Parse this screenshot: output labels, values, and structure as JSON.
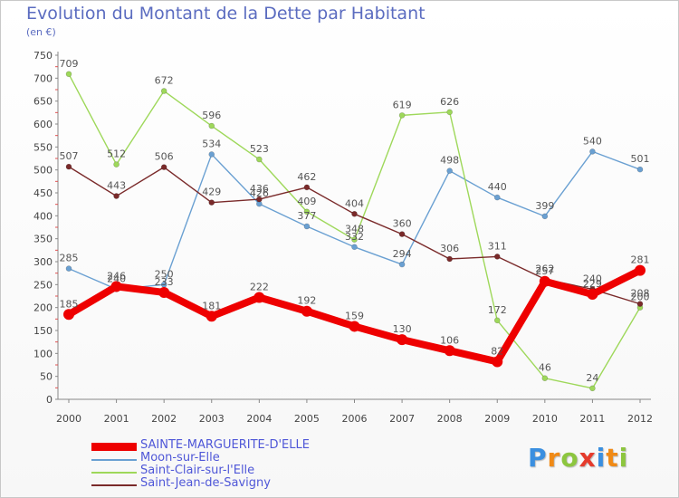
{
  "chart_data": {
    "type": "line",
    "title": "Evolution du Montant de la Dette par Habitant",
    "subtitle": "(en €)",
    "x": [
      "2000",
      "2001",
      "2002",
      "2003",
      "2004",
      "2005",
      "2006",
      "2007",
      "2008",
      "2009",
      "2010",
      "2011",
      "2012"
    ],
    "ylim": [
      0,
      750
    ],
    "y_ticks": [
      0,
      50,
      100,
      150,
      200,
      250,
      300,
      350,
      400,
      450,
      500,
      550,
      600,
      650,
      700,
      750
    ],
    "grid": false,
    "legend_position": "bottom-left",
    "series": [
      {
        "name": "SAINTE-MARGUERITE-D'ELLE",
        "color": "#ee0000",
        "width": 8,
        "values": [
          185,
          246,
          233,
          181,
          222,
          192,
          159,
          130,
          106,
          82,
          257,
          229,
          281
        ]
      },
      {
        "name": "Moon-sur-Elle",
        "color": "#6aa0d2",
        "width": 1.4,
        "values": [
          285,
          240,
          250,
          534,
          426,
          377,
          332,
          294,
          498,
          440,
          399,
          540,
          501
        ]
      },
      {
        "name": "Saint-Clair-sur-l'Elle",
        "color": "#9ed85a",
        "width": 1.4,
        "values": [
          709,
          512,
          672,
          596,
          523,
          409,
          348,
          619,
          626,
          172,
          46,
          24,
          200
        ]
      },
      {
        "name": "Saint-Jean-de-Savigny",
        "color": "#7a2a2a",
        "width": 1.4,
        "values": [
          507,
          443,
          506,
          429,
          436,
          462,
          404,
          360,
          306,
          311,
          262,
          240,
          208
        ]
      }
    ]
  },
  "logo": {
    "letters": [
      "P",
      "r",
      "o",
      "x",
      "i",
      "t",
      "i"
    ],
    "colors": [
      "#3a8fe0",
      "#f08a16",
      "#8dc63f",
      "#e53b2c",
      "#3a8fe0",
      "#f08a16",
      "#8dc63f"
    ]
  }
}
